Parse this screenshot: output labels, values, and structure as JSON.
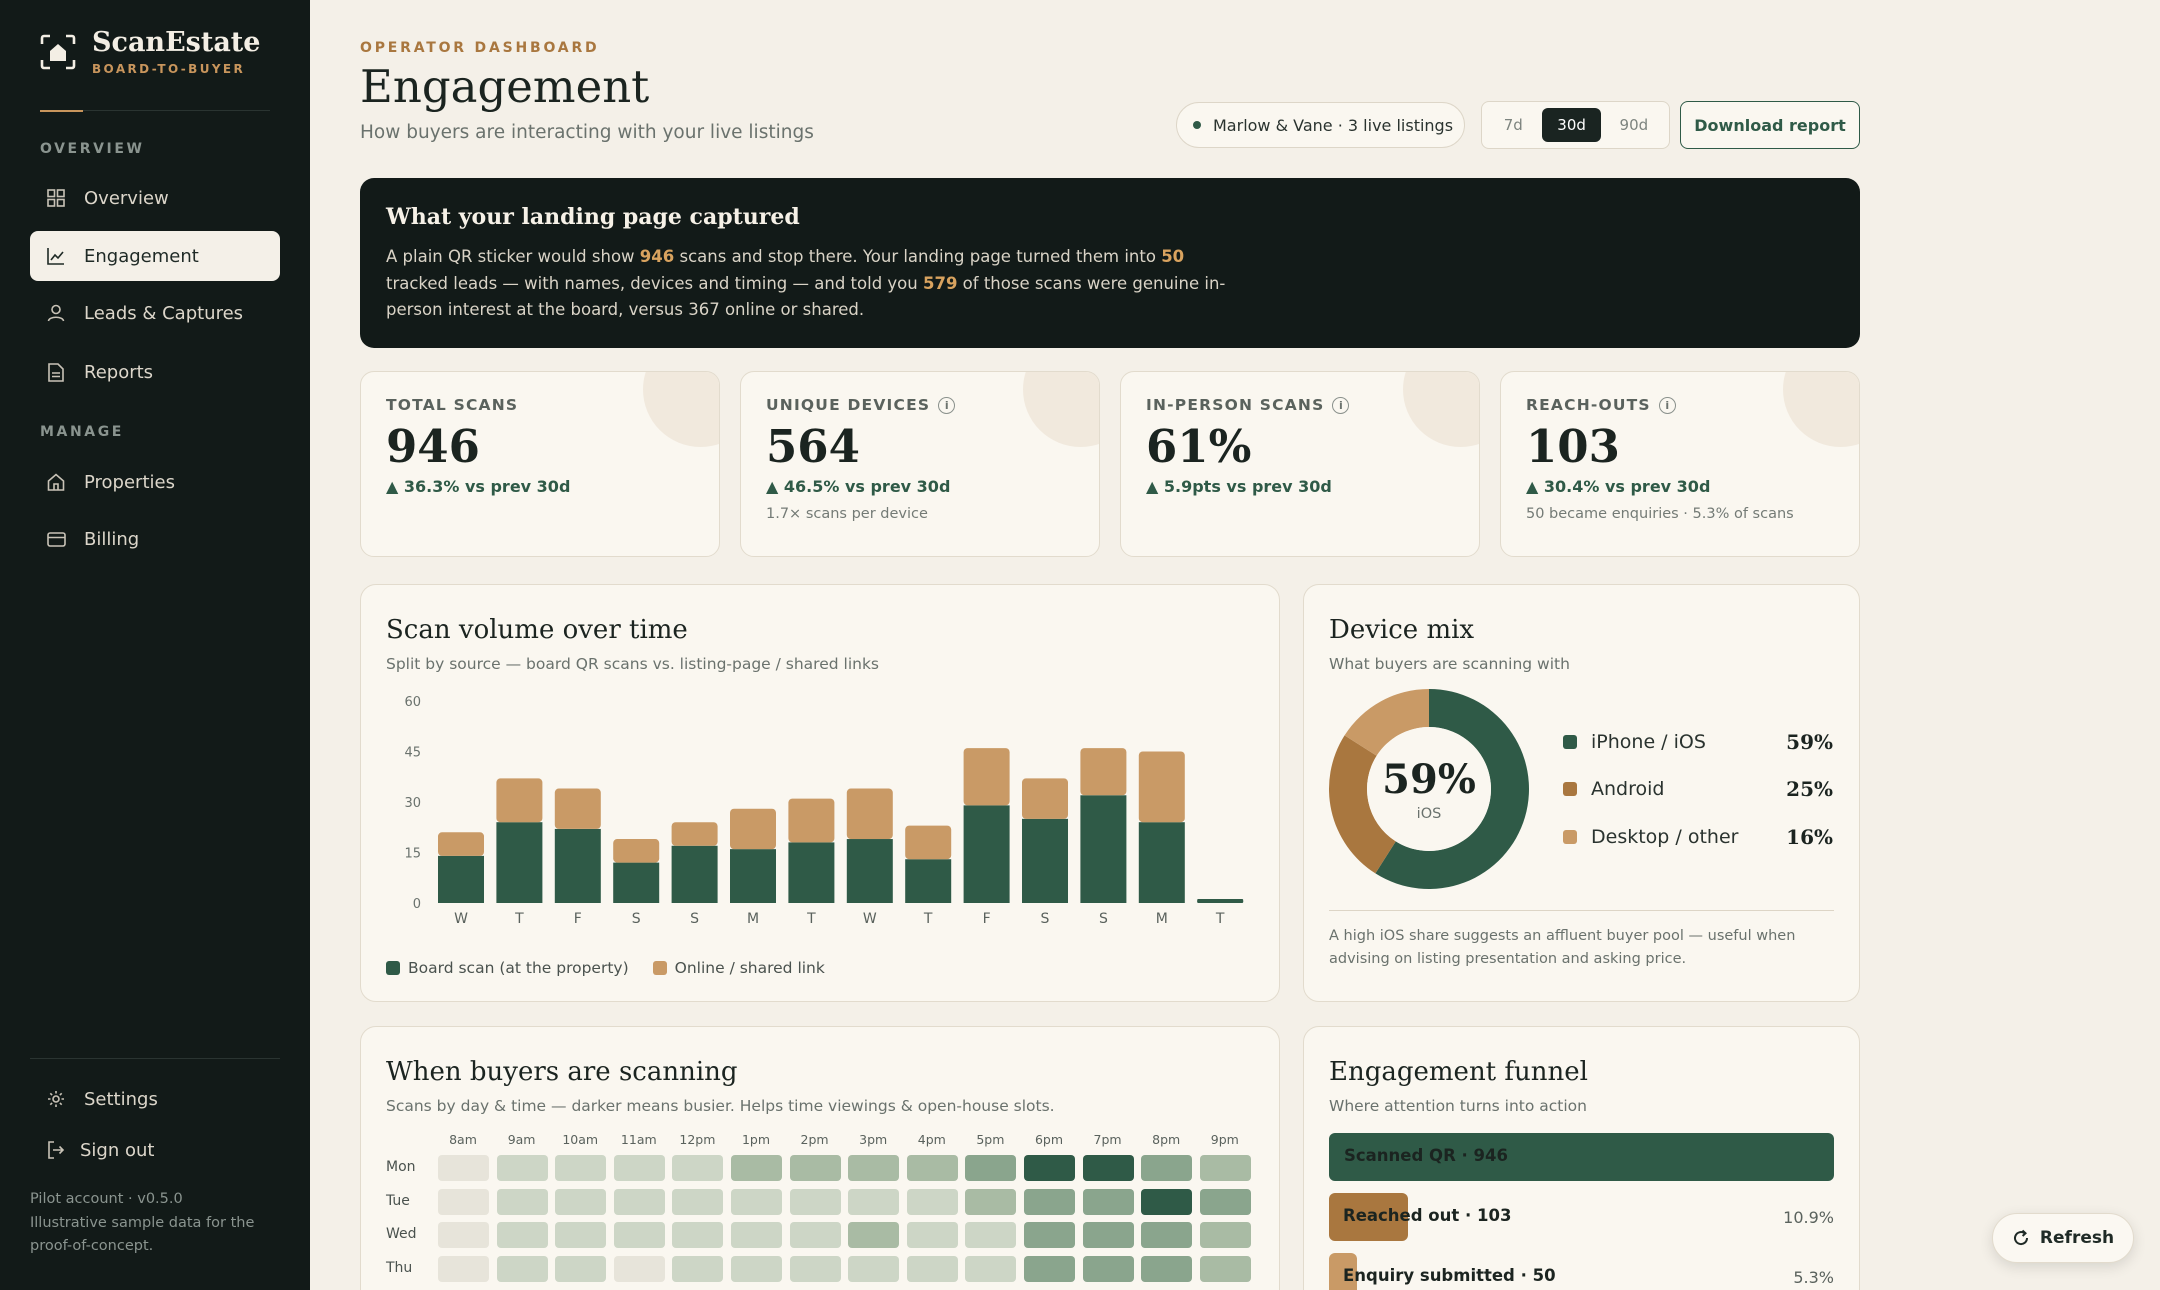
{
  "brand": {
    "name": "ScanEstate",
    "tagline": "BOARD-TO-BUYER"
  },
  "sidebar": {
    "sections": {
      "overview": "OVERVIEW",
      "manage": "MANAGE"
    },
    "items": [
      {
        "label": "Overview",
        "icon": "grid-icon"
      },
      {
        "label": "Engagement",
        "icon": "chart-icon"
      },
      {
        "label": "Leads & Captures",
        "icon": "user-icon"
      },
      {
        "label": "Reports",
        "icon": "document-icon"
      },
      {
        "label": "Properties",
        "icon": "home-icon"
      },
      {
        "label": "Billing",
        "icon": "card-icon"
      }
    ],
    "settings_label": "Settings",
    "signout_label": "Sign out",
    "foot_line1": "Pilot account · v0.5.0",
    "foot_line2": "Illustrative sample data for the",
    "foot_line3": "proof-of-concept."
  },
  "header": {
    "eyebrow": "OPERATOR DASHBOARD",
    "title": "Engagement",
    "subtitle": "How buyers are interacting with your live listings",
    "agency": "Marlow & Vane · 3 live listings",
    "ranges": [
      "7d",
      "30d",
      "90d"
    ],
    "active_range": "30d",
    "download_label": "Download report"
  },
  "banner": {
    "title": "What your landing page captured",
    "t1": "A plain QR sticker would show ",
    "n1": "946",
    "t2": " scans and stop there. Your landing page turned them into ",
    "n2": "50",
    "t3": " tracked leads — with names, devices and timing — and told you ",
    "n3": "579",
    "t4": " of those scans were genuine in-person interest at the board, versus 367 online or shared."
  },
  "kpis": [
    {
      "label": "TOTAL SCANS",
      "value": "946",
      "delta": "▲ 36.3% vs prev 30d",
      "foot": "",
      "info": false
    },
    {
      "label": "UNIQUE DEVICES",
      "value": "564",
      "delta": "▲ 46.5% vs prev 30d",
      "foot": "1.7× scans per device",
      "info": true
    },
    {
      "label": "IN-PERSON SCANS",
      "value": "61%",
      "delta": "▲ 5.9pts vs prev 30d",
      "foot": "",
      "info": true
    },
    {
      "label": "REACH-OUTS",
      "value": "103",
      "delta": "▲ 30.4% vs prev 30d",
      "foot": "50 became enquiries · 5.3% of scans",
      "info": true
    }
  ],
  "scan_panel": {
    "title": "Scan volume over time",
    "subtitle": "Split by source — board QR scans vs. listing-page / shared links",
    "legend_board": "Board scan (at the property)",
    "legend_online": "Online / shared link"
  },
  "chart_data": {
    "type": "bar",
    "stacked": true,
    "categories": [
      "W",
      "T",
      "F",
      "S",
      "S",
      "M",
      "T",
      "W",
      "T",
      "F",
      "S",
      "S",
      "M",
      "T"
    ],
    "series": [
      {
        "name": "Board scan (at the property)",
        "color": "#2f5a47",
        "values": [
          14,
          24,
          22,
          12,
          17,
          16,
          18,
          19,
          13,
          29,
          25,
          32,
          24,
          1
        ]
      },
      {
        "name": "Online / shared link",
        "color": "#c99a66",
        "values": [
          7,
          13,
          12,
          7,
          7,
          12,
          13,
          15,
          10,
          17,
          12,
          14,
          21,
          0
        ]
      }
    ],
    "yticks": [
      0,
      15,
      30,
      45,
      60
    ],
    "ylim": [
      0,
      60
    ],
    "legend": "bottom-left"
  },
  "device_panel": {
    "title": "Device mix",
    "subtitle": "What buyers are scanning with",
    "center_value": "59%",
    "center_label": "iOS",
    "items": [
      {
        "name": "iPhone / iOS",
        "pct": "59%",
        "value": 59,
        "color": "#2f5a47"
      },
      {
        "name": "Android",
        "pct": "25%",
        "value": 25,
        "color": "#a9773f"
      },
      {
        "name": "Desktop / other",
        "pct": "16%",
        "value": 16,
        "color": "#c99a66"
      }
    ],
    "note": "A high iOS share suggests an affluent buyer pool — useful when advising on listing presentation and asking price."
  },
  "heatmap_panel": {
    "title": "When buyers are scanning",
    "subtitle": "Scans by day & time — darker means busier. Helps time viewings & open-house slots.",
    "hours": [
      "8am",
      "9am",
      "10am",
      "11am",
      "12pm",
      "1pm",
      "2pm",
      "3pm",
      "4pm",
      "5pm",
      "6pm",
      "7pm",
      "8pm",
      "9pm"
    ],
    "days": [
      "Mon",
      "Tue",
      "Wed",
      "Thu"
    ],
    "levels": [
      [
        0,
        1,
        1,
        1,
        1,
        2,
        2,
        2,
        2,
        3,
        5,
        5,
        3,
        2
      ],
      [
        0,
        1,
        1,
        1,
        1,
        1,
        1,
        1,
        1,
        2,
        3,
        3,
        5,
        3
      ],
      [
        0,
        1,
        1,
        1,
        1,
        1,
        1,
        2,
        1,
        1,
        3,
        3,
        3,
        2
      ],
      [
        0,
        1,
        1,
        0,
        1,
        1,
        1,
        1,
        1,
        1,
        3,
        3,
        3,
        2
      ]
    ]
  },
  "funnel_panel": {
    "title": "Engagement funnel",
    "subtitle": "Where attention turns into action",
    "steps": [
      {
        "label": "Scanned QR · 946",
        "pct": "",
        "share": 1.0,
        "color": "#2f5a47"
      },
      {
        "label": "Reached out · 103",
        "pct": "10.9%",
        "share": 0.109,
        "color": "#a9773f"
      },
      {
        "label": "Enquiry submitted · 50",
        "pct": "5.3%",
        "share": 0.053,
        "color": "#c99a66"
      }
    ]
  },
  "refresh_label": "Refresh"
}
